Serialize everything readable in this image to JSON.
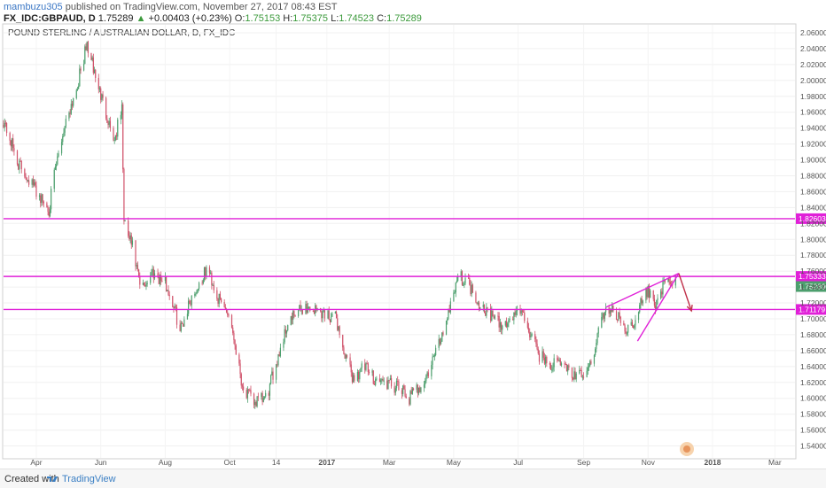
{
  "header": {
    "user": "mambuzu305",
    "published_text": "published on TradingView.com, November 27, 2017 08:43 EST",
    "symbol_line": "FX_IDC:GBPAUD, D",
    "last": "1.75289",
    "change_arrow": "▲",
    "change": "+0.00403 (+0.23%)",
    "o_label": "O:",
    "o": "1.75153",
    "h_label": "H:",
    "h": "1.75375",
    "l_label": "L:",
    "l": "1.74523",
    "c_label": "C:",
    "c": "1.75289"
  },
  "footer": {
    "created_with": "Created with",
    "brand": "TradingView"
  },
  "colors": {
    "up": "#4c9f6d",
    "down": "#d0526a",
    "level": "#e020d8",
    "arrow": "#c0304a",
    "axis_text": "#555555"
  },
  "chart_data": {
    "type": "candlestick",
    "title": "POUND STERLING / AUSTRALIAN DOLLAR, D, FX_IDC",
    "ylim": [
      1.525,
      2.07
    ],
    "yticks": [
      "2.06000",
      "2.04000",
      "2.02000",
      "2.00000",
      "1.98000",
      "1.96000",
      "1.94000",
      "1.92000",
      "1.90000",
      "1.88000",
      "1.86000",
      "1.84000",
      "1.82000",
      "1.80000",
      "1.78000",
      "1.76000",
      "1.74000",
      "1.72000",
      "1.70000",
      "1.68000",
      "1.66000",
      "1.64000",
      "1.62000",
      "1.60000",
      "1.58000",
      "1.56000",
      "1.54000"
    ],
    "xticks": [
      {
        "label": "Apr",
        "date": "2016-04-01"
      },
      {
        "label": "Jun",
        "date": "2016-06-01"
      },
      {
        "label": "Aug",
        "date": "2016-08-01"
      },
      {
        "label": "Oct",
        "date": "2016-10-01"
      },
      {
        "label": "14",
        "date": "2016-11-14"
      },
      {
        "label": "2017",
        "date": "2017-01-01"
      },
      {
        "label": "Mar",
        "date": "2017-03-01"
      },
      {
        "label": "May",
        "date": "2017-05-01"
      },
      {
        "label": "Jul",
        "date": "2017-07-01"
      },
      {
        "label": "Sep",
        "date": "2017-09-01"
      },
      {
        "label": "Nov",
        "date": "2017-11-01"
      },
      {
        "label": "2018",
        "date": "2018-01-01"
      },
      {
        "label": "Mar",
        "date": "2018-03-01"
      }
    ],
    "xrange": [
      "2016-03-01",
      "2018-03-20"
    ],
    "path": [
      [
        "2016-03-01",
        1.95
      ],
      [
        "2016-03-15",
        1.895
      ],
      [
        "2016-03-28",
        1.87
      ],
      [
        "2016-04-08",
        1.846
      ],
      [
        "2016-04-13",
        1.838
      ],
      [
        "2016-04-18",
        1.88
      ],
      [
        "2016-04-28",
        1.945
      ],
      [
        "2016-05-10",
        1.995
      ],
      [
        "2016-05-19",
        2.045
      ],
      [
        "2016-05-30",
        1.99
      ],
      [
        "2016-06-07",
        1.955
      ],
      [
        "2016-06-14",
        1.925
      ],
      [
        "2016-06-21",
        1.965
      ],
      [
        "2016-06-23",
        1.82
      ],
      [
        "2016-07-01",
        1.79
      ],
      [
        "2016-07-09",
        1.735
      ],
      [
        "2016-07-20",
        1.76
      ],
      [
        "2016-08-01",
        1.745
      ],
      [
        "2016-08-10",
        1.712
      ],
      [
        "2016-08-15",
        1.685
      ],
      [
        "2016-08-25",
        1.725
      ],
      [
        "2016-09-05",
        1.75
      ],
      [
        "2016-09-10",
        1.765
      ],
      [
        "2016-09-20",
        1.725
      ],
      [
        "2016-10-01",
        1.705
      ],
      [
        "2016-10-07",
        1.662
      ],
      [
        "2016-10-14",
        1.61
      ],
      [
        "2016-10-25",
        1.595
      ],
      [
        "2016-11-05",
        1.6
      ],
      [
        "2016-11-15",
        1.65
      ],
      [
        "2016-11-25",
        1.695
      ],
      [
        "2016-12-10",
        1.715
      ],
      [
        "2016-12-25",
        1.71
      ],
      [
        "2017-01-10",
        1.7
      ],
      [
        "2017-01-18",
        1.652
      ],
      [
        "2017-01-26",
        1.625
      ],
      [
        "2017-02-05",
        1.64
      ],
      [
        "2017-02-15",
        1.625
      ],
      [
        "2017-02-28",
        1.618
      ],
      [
        "2017-03-10",
        1.612
      ],
      [
        "2017-03-20",
        1.6
      ],
      [
        "2017-04-05",
        1.625
      ],
      [
        "2017-04-20",
        1.68
      ],
      [
        "2017-04-28",
        1.72
      ],
      [
        "2017-05-05",
        1.755
      ],
      [
        "2017-05-15",
        1.745
      ],
      [
        "2017-05-25",
        1.72
      ],
      [
        "2017-06-05",
        1.705
      ],
      [
        "2017-06-15",
        1.69
      ],
      [
        "2017-06-25",
        1.7
      ],
      [
        "2017-07-01",
        1.715
      ],
      [
        "2017-07-10",
        1.69
      ],
      [
        "2017-07-20",
        1.656
      ],
      [
        "2017-08-01",
        1.642
      ],
      [
        "2017-08-12",
        1.645
      ],
      [
        "2017-08-25",
        1.625
      ],
      [
        "2017-09-06",
        1.635
      ],
      [
        "2017-09-18",
        1.7
      ],
      [
        "2017-09-25",
        1.715
      ],
      [
        "2017-10-05",
        1.698
      ],
      [
        "2017-10-14",
        1.685
      ],
      [
        "2017-10-22",
        1.71
      ],
      [
        "2017-10-31",
        1.735
      ],
      [
        "2017-11-08",
        1.72
      ],
      [
        "2017-11-15",
        1.74
      ],
      [
        "2017-11-27",
        1.7529
      ]
    ],
    "levels": [
      {
        "value": 1.82603,
        "label": "1.82603"
      },
      {
        "value": 1.75333,
        "label": "1.75333"
      },
      {
        "value": 1.71179,
        "label": "1.71179"
      }
    ],
    "last_price": {
      "value": 1.75289,
      "label": "1.75289"
    },
    "annotations": [
      {
        "type": "trendline",
        "from": [
          "2017-09-22",
          1.7145
        ],
        "to": [
          "2017-11-30",
          1.7572
        ]
      },
      {
        "type": "trendline",
        "from": [
          "2017-10-22",
          1.672
        ],
        "to": [
          "2017-11-30",
          1.7572
        ]
      },
      {
        "type": "arrow",
        "from": [
          "2017-11-30",
          1.7572
        ],
        "to": [
          "2017-12-12",
          1.71
        ]
      }
    ]
  }
}
